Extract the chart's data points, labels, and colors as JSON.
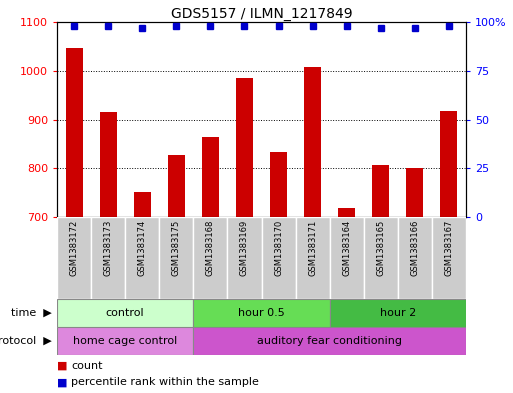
{
  "title": "GDS5157 / ILMN_1217849",
  "samples": [
    "GSM1383172",
    "GSM1383173",
    "GSM1383174",
    "GSM1383175",
    "GSM1383168",
    "GSM1383169",
    "GSM1383170",
    "GSM1383171",
    "GSM1383164",
    "GSM1383165",
    "GSM1383166",
    "GSM1383167"
  ],
  "counts": [
    1047,
    916,
    752,
    828,
    865,
    985,
    833,
    1007,
    718,
    806,
    800,
    918
  ],
  "percentile_ranks": [
    98,
    98,
    97,
    98,
    98,
    98,
    98,
    98,
    98,
    97,
    97,
    98
  ],
  "ylim_left": [
    700,
    1100
  ],
  "ylim_right": [
    0,
    100
  ],
  "yticks_left": [
    700,
    800,
    900,
    1000,
    1100
  ],
  "yticks_right": [
    0,
    25,
    50,
    75,
    100
  ],
  "bar_color": "#cc0000",
  "dot_color": "#0000cc",
  "time_groups": [
    {
      "label": "control",
      "start": 0,
      "end": 4,
      "color": "#ccffcc"
    },
    {
      "label": "hour 0.5",
      "start": 4,
      "end": 8,
      "color": "#66dd55"
    },
    {
      "label": "hour 2",
      "start": 8,
      "end": 12,
      "color": "#44bb44"
    }
  ],
  "protocol_groups": [
    {
      "label": "home cage control",
      "start": 0,
      "end": 4,
      "color": "#dd88dd"
    },
    {
      "label": "auditory fear conditioning",
      "start": 4,
      "end": 12,
      "color": "#cc55cc"
    }
  ],
  "bg_color": "#ffffff",
  "sample_box_color": "#cccccc",
  "grid_linestyle": ":",
  "legend_items": [
    {
      "color": "#cc0000",
      "label": "count"
    },
    {
      "color": "#0000cc",
      "label": "percentile rank within the sample"
    }
  ]
}
